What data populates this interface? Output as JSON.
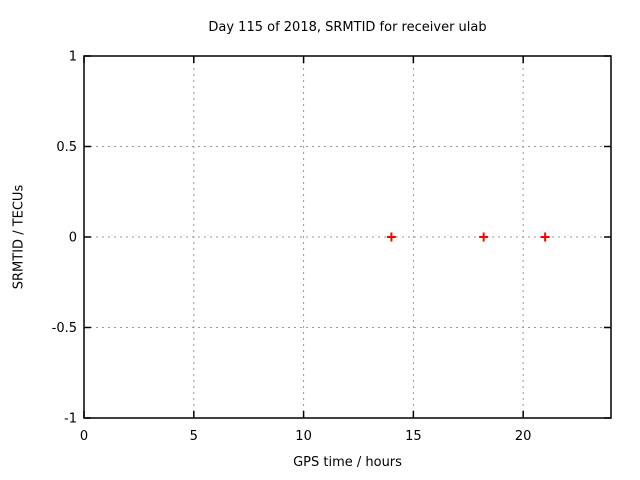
{
  "chart_data": {
    "type": "scatter",
    "title": "Day 115 of 2018, SRMTID for receiver ulab",
    "xlabel": "GPS time / hours",
    "ylabel": "SRMTID / TECUs",
    "xlim": [
      0,
      24
    ],
    "ylim": [
      -1,
      1
    ],
    "xticks": [
      0,
      5,
      10,
      15,
      20
    ],
    "xtick_labels": [
      "0",
      "5",
      "10",
      "15",
      "20"
    ],
    "yticks": [
      -1,
      -0.5,
      0,
      0.5,
      1
    ],
    "ytick_labels": [
      "-1",
      "-0.5",
      "0",
      "0.5",
      "1"
    ],
    "grid": true,
    "grid_style": "dotted",
    "legend": "none",
    "series": [
      {
        "name": "SRMTID",
        "marker": "plus",
        "color": "#ff0000",
        "points": [
          {
            "x": 14.0,
            "y": 0.0
          },
          {
            "x": 18.2,
            "y": 0.0
          },
          {
            "x": 21.0,
            "y": 0.0
          }
        ]
      }
    ],
    "colors": {
      "axis": "#000000",
      "grid": "#999999",
      "text": "#000000",
      "marker": "#ff0000",
      "background": "#ffffff"
    }
  }
}
